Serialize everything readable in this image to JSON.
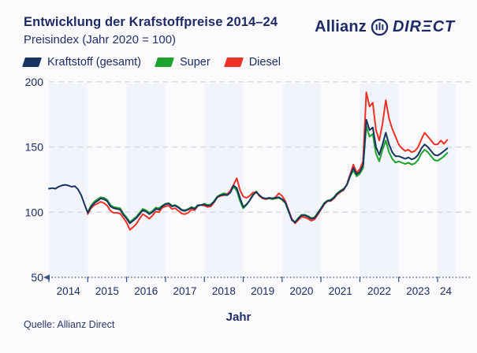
{
  "header": {
    "title": "Entwicklung der Krafstoffpreise 2014–24",
    "subtitle": "Preisindex (Jahr 2020 = 100)"
  },
  "logo": {
    "name": "Allianz",
    "direct": "DIRECT",
    "direct_parts": {
      "pre": "DIR",
      "e": "Ξ",
      "post": "CT"
    }
  },
  "footer": {
    "source": "Quelle: Allianz Direct"
  },
  "colors": {
    "text_navy": "#1e2b66",
    "axis_navy": "#3c5390",
    "grid": "#d7dae3",
    "stripe": "#f1f4fa",
    "logo_blue": "#3f7fd6",
    "navy_line": "#17335f",
    "green_line": "#1da22c",
    "red_line": "#ee3124"
  },
  "chart_data": {
    "type": "line",
    "title": "Entwicklung der Krafstoffpreise 2014–24",
    "subtitle": "Preisindex (Jahr 2020 = 100)",
    "xlabel": "Jahr",
    "ylabel": "",
    "ylim": [
      50,
      200
    ],
    "yticks": [
      200,
      150,
      100,
      50
    ],
    "x_tick_labels": [
      "2014",
      "2015",
      "2016",
      "2017",
      "2018",
      "2019",
      "2020",
      "2021",
      "2022",
      "2023",
      "24"
    ],
    "x_unit": "month",
    "grid": "horizontal-dashed",
    "legend_position": "top-left",
    "background_stripes": "even years shaded",
    "series": [
      {
        "name": "Kraftstoff (gesamt)",
        "color": "#17335f",
        "start": "2014-01",
        "values": [
          118,
          118.5,
          118,
          119.5,
          120.5,
          121,
          120.5,
          119.5,
          120,
          117.5,
          113,
          106,
          99.5,
          104,
          107,
          108.5,
          110.5,
          110,
          108.5,
          104.5,
          103,
          102.5,
          102,
          98,
          95,
          91.5,
          93.5,
          95.5,
          98.5,
          101.5,
          100.5,
          98.5,
          100,
          102.5,
          102,
          104.5,
          106,
          106.5,
          104.5,
          105,
          103.5,
          101.5,
          101,
          102,
          103.5,
          102.5,
          105,
          105.5,
          106,
          105,
          105.5,
          108,
          111.5,
          113,
          113.5,
          113,
          115,
          120.5,
          118.5,
          111,
          104,
          106,
          109,
          113,
          115.5,
          113,
          111,
          110.5,
          111,
          110.5,
          111,
          111.5,
          110,
          107.5,
          101,
          94,
          92,
          95,
          97.5,
          97.5,
          96.5,
          95,
          95.5,
          99,
          102.5,
          106.5,
          108.5,
          109,
          111,
          114,
          116,
          117.5,
          121,
          128,
          134,
          129,
          131,
          136,
          171,
          163,
          165,
          150,
          144,
          152,
          161,
          152,
          146,
          143,
          143,
          142,
          141,
          142,
          140.5,
          141.5,
          144,
          149,
          152,
          150,
          147,
          144,
          143.5,
          145,
          147,
          149
        ]
      },
      {
        "name": "Super",
        "color": "#1da22c",
        "start": "2015-01",
        "values": [
          100,
          105,
          108,
          110,
          111.5,
          111,
          109.5,
          105.5,
          104,
          103.5,
          103,
          99,
          96,
          92.5,
          94.5,
          96.5,
          99.5,
          102.5,
          101.5,
          99.5,
          101,
          103.5,
          103,
          105,
          106.5,
          107,
          105,
          105.5,
          104,
          102,
          101.5,
          102.5,
          104,
          103,
          105.5,
          105.5,
          106.5,
          105.5,
          106,
          108.5,
          112,
          113.5,
          114.5,
          114,
          115.5,
          119.5,
          116.5,
          108.5,
          103,
          105.5,
          109,
          113.5,
          116,
          113,
          111,
          110,
          110.5,
          110,
          110.5,
          111,
          109.5,
          107,
          100.5,
          94.5,
          92.5,
          95.5,
          98,
          98,
          97,
          95.5,
          96,
          99.5,
          103,
          107,
          109,
          109.5,
          111.5,
          114.5,
          116.5,
          118,
          121,
          127.5,
          132,
          127.5,
          129.5,
          134,
          166,
          158,
          160,
          145,
          139,
          148,
          155,
          146,
          141,
          138,
          139,
          138,
          137,
          138,
          136.5,
          137.5,
          140,
          145,
          148,
          146,
          143,
          140,
          139.5,
          141,
          143,
          145.5
        ]
      },
      {
        "name": "Diesel",
        "color": "#ee3124",
        "start": "2015-01",
        "values": [
          98.5,
          103,
          105.5,
          106.5,
          108,
          107,
          105,
          101,
          99.5,
          99.5,
          99,
          95.5,
          92,
          86.5,
          88.5,
          91,
          95,
          98.5,
          97,
          95,
          97.5,
          100.5,
          100,
          103.5,
          104.5,
          105,
          102.5,
          103,
          101,
          99,
          98.5,
          99.5,
          102,
          101.5,
          105,
          105.5,
          105,
          104,
          104.5,
          107.5,
          111.5,
          112.5,
          113,
          113.5,
          116.5,
          121,
          126,
          117,
          112,
          111,
          112.5,
          115,
          115.5,
          112.5,
          110.5,
          110,
          111,
          110.5,
          111.5,
          114.5,
          112.5,
          108.5,
          101.5,
          95,
          91.5,
          94,
          96.5,
          96,
          95,
          93.5,
          94.5,
          98,
          102,
          106,
          108.5,
          108.5,
          110.5,
          113.5,
          115.5,
          117,
          121.5,
          129,
          136.5,
          130.5,
          133,
          139,
          192,
          181,
          184,
          163,
          155,
          168,
          186,
          172,
          164,
          158,
          152,
          149,
          147,
          148,
          146,
          147,
          150,
          156,
          161,
          158,
          155,
          152,
          152,
          155,
          152.5,
          155.5
        ]
      }
    ]
  }
}
